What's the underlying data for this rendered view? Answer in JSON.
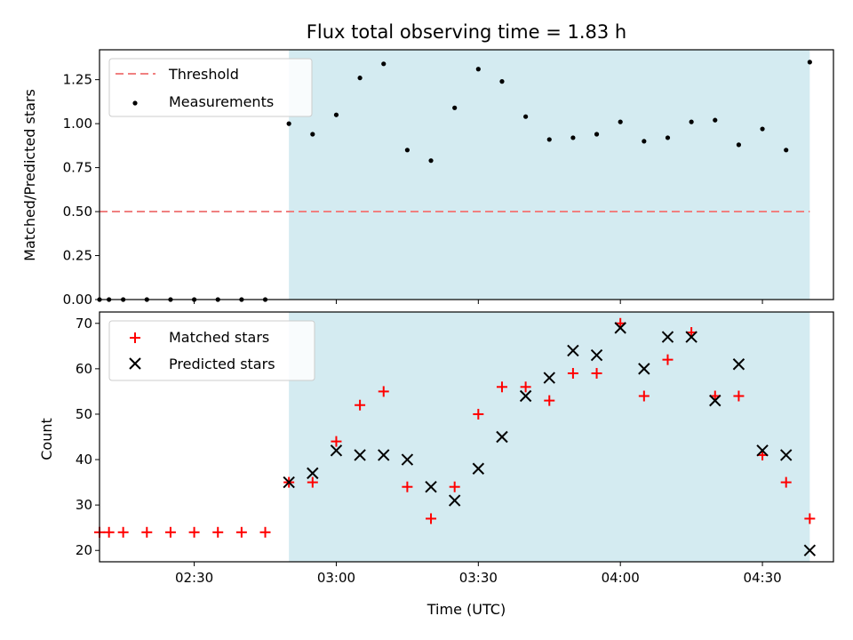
{
  "chart_data": [
    {
      "type": "scatter",
      "title": "Flux total observing time = 1.83 h",
      "xlabel": "",
      "ylabel": "Matched/Predicted stars",
      "x_range": [
        "02:10",
        "04:45"
      ],
      "ylim": [
        0,
        1.42
      ],
      "y_ticks": [
        "0.00",
        "0.25",
        "0.50",
        "0.75",
        "1.00",
        "1.25"
      ],
      "shaded_interval": [
        "02:50",
        "04:40"
      ],
      "shade_color": "#d4ebf1",
      "threshold": {
        "name": "Threshold",
        "value": 0.5,
        "x": [
          "02:10",
          "04:40"
        ],
        "color": "#f08080"
      },
      "legend": {
        "placement": "upper-left",
        "entries": [
          "Threshold",
          "Measurements"
        ]
      },
      "series": [
        {
          "name": "Measurements",
          "marker": "dot",
          "color": "#000000",
          "x": [
            "02:10",
            "02:12",
            "02:15",
            "02:20",
            "02:25",
            "02:30",
            "02:35",
            "02:40",
            "02:45",
            "02:50",
            "02:55",
            "03:00",
            "03:05",
            "03:10",
            "03:15",
            "03:20",
            "03:25",
            "03:30",
            "03:35",
            "03:40",
            "03:45",
            "03:50",
            "03:55",
            "04:00",
            "04:05",
            "04:10",
            "04:15",
            "04:20",
            "04:25",
            "04:30",
            "04:35",
            "04:40"
          ],
          "y": [
            0,
            0,
            0,
            0,
            0,
            0,
            0,
            0,
            0,
            1.0,
            0.94,
            1.05,
            1.26,
            1.34,
            0.85,
            0.79,
            1.09,
            1.31,
            1.24,
            1.04,
            0.91,
            0.92,
            0.94,
            1.01,
            0.9,
            0.92,
            1.01,
            1.02,
            0.88,
            0.97,
            0.85,
            1.35
          ]
        }
      ]
    },
    {
      "type": "scatter",
      "xlabel": "Time (UTC)",
      "ylabel": "Count",
      "x_range": [
        "02:10",
        "04:45"
      ],
      "x_ticks": [
        "02:30",
        "03:00",
        "03:30",
        "04:00",
        "04:30"
      ],
      "ylim": [
        17.5,
        72.5
      ],
      "y_ticks": [
        "20",
        "30",
        "40",
        "50",
        "60",
        "70"
      ],
      "shaded_interval": [
        "02:50",
        "04:40"
      ],
      "shade_color": "#d4ebf1",
      "legend": {
        "placement": "upper-left",
        "entries": [
          "Matched stars",
          "Predicted stars"
        ]
      },
      "series": [
        {
          "name": "Matched stars",
          "marker": "plus",
          "color": "#ff0000",
          "x": [
            "02:10",
            "02:12",
            "02:15",
            "02:20",
            "02:25",
            "02:30",
            "02:35",
            "02:40",
            "02:45",
            "02:50",
            "02:55",
            "03:00",
            "03:05",
            "03:10",
            "03:15",
            "03:20",
            "03:25",
            "03:30",
            "03:35",
            "03:40",
            "03:45",
            "03:50",
            "03:55",
            "04:00",
            "04:05",
            "04:10",
            "04:15",
            "04:20",
            "04:25",
            "04:30",
            "04:35",
            "04:40"
          ],
          "y": [
            24,
            24,
            24,
            24,
            24,
            24,
            24,
            24,
            24,
            35,
            35,
            44,
            52,
            55,
            34,
            27,
            34,
            50,
            56,
            56,
            53,
            59,
            59,
            70,
            54,
            62,
            68,
            54,
            54,
            41,
            35,
            27
          ]
        },
        {
          "name": "Predicted stars",
          "marker": "x",
          "color": "#000000",
          "x": [
            "02:50",
            "02:55",
            "03:00",
            "03:05",
            "03:10",
            "03:15",
            "03:20",
            "03:25",
            "03:30",
            "03:35",
            "03:40",
            "03:45",
            "03:50",
            "03:55",
            "04:00",
            "04:05",
            "04:10",
            "04:15",
            "04:20",
            "04:25",
            "04:30",
            "04:35",
            "04:40"
          ],
          "y": [
            35,
            37,
            42,
            41,
            41,
            40,
            34,
            31,
            38,
            45,
            54,
            58,
            64,
            63,
            69,
            60,
            67,
            67,
            53,
            61,
            42,
            41,
            20
          ]
        }
      ]
    }
  ]
}
